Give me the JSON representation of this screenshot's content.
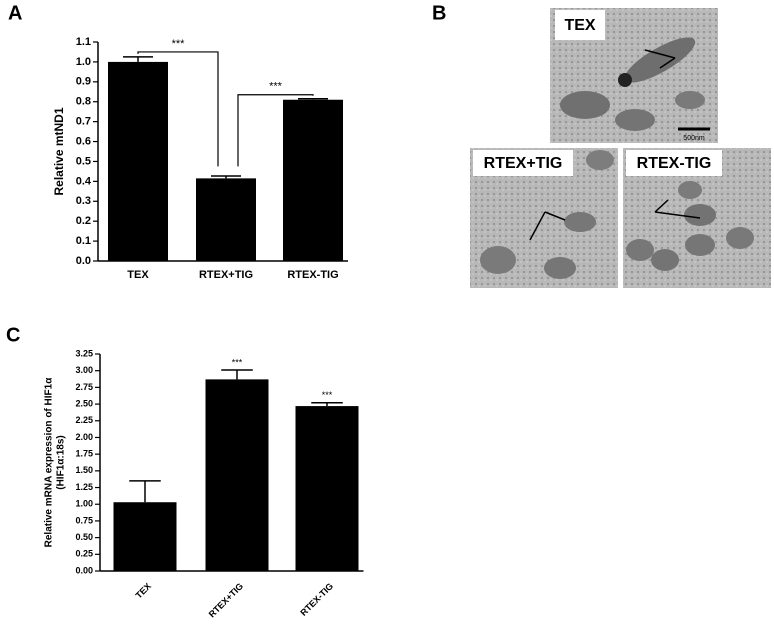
{
  "panel_labels": [
    "A",
    "B",
    "C"
  ],
  "micrographs": {
    "titles": [
      "TEX",
      "RTEX+TIG",
      "RTEX-TIG"
    ],
    "scale_bar": "500nm"
  },
  "chart_data": [
    {
      "type": "bar",
      "ylabel": [
        "Relative  mtND1"
      ],
      "categories": [
        "TEX",
        "RTEX+TIG",
        "RTEX-TIG"
      ],
      "values": [
        1.0,
        0.415,
        0.81
      ],
      "errors": [
        0.025,
        0.012,
        0.005
      ],
      "color": "#000000",
      "ylim": [
        0,
        1.1
      ],
      "yticks": [
        {
          "value": 0,
          "label": "0.0"
        },
        0.1,
        0.2,
        0.3,
        0.4,
        0.5,
        0.6,
        0.7,
        0.8,
        0.9,
        {
          "value": 1,
          "label": "1.0"
        },
        1.1
      ],
      "brackets": [
        "***",
        "***"
      ]
    },
    {
      "type": "bar",
      "ylabel": [
        "Relative mRNA expression of HIF1α",
        "(HIF1α:18s)"
      ],
      "categories": [
        "TEX",
        "RTEX+TIG",
        "RTEX-TIG"
      ],
      "values": [
        1.03,
        2.87,
        2.47
      ],
      "errors": [
        0.32,
        0.14,
        0.05
      ],
      "color": "#000000",
      "ylim": [
        0,
        3.25
      ],
      "yticks": [
        {
          "value": 0,
          "label": "0.00"
        },
        0.25,
        {
          "value": 0.5,
          "label": "0.50"
        },
        0.75,
        {
          "value": 1,
          "label": "1.00"
        },
        1.25,
        {
          "value": 1.5,
          "label": "1.50"
        },
        1.75,
        {
          "value": 2,
          "label": "2.00"
        },
        2.25,
        {
          "value": 2.5,
          "label": "2.50"
        },
        2.75,
        {
          "value": 3,
          "label": "3.00"
        },
        3.25
      ],
      "value_annotations": [
        null,
        "***",
        "***"
      ]
    }
  ]
}
